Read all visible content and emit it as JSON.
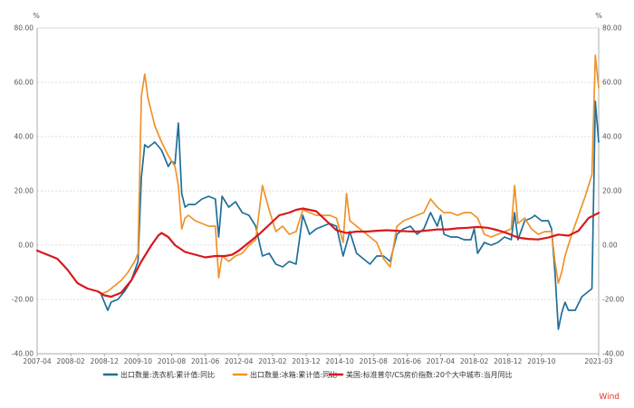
{
  "chart_data": {
    "type": "line",
    "unit_left": "%",
    "unit_right": "%",
    "ylim": [
      -40,
      80
    ],
    "y_ticks_left": [
      "80.00",
      "60.00",
      "40.00",
      "20.00",
      "0.00",
      "-20.00",
      "-40.00"
    ],
    "y_ticks_right": [
      "80.00",
      "60.00",
      "40.00",
      "20.00",
      "0.00",
      "-20.00",
      "-40.00"
    ],
    "x_ticks": [
      "2007-04",
      "2008-02",
      "2008-12",
      "2009-10",
      "2010-08",
      "2011-06",
      "2012-04",
      "2013-02",
      "2013-12",
      "2014-10",
      "2015-08",
      "2016-06",
      "2017-04",
      "2018-02",
      "2018-12",
      "2019-10",
      "2021-03"
    ],
    "xlim": [
      "2007-04",
      "2021-03"
    ],
    "grid": "horizontal-dashed",
    "legend_position": "bottom",
    "series": [
      {
        "name": "出口数量:洗衣机:累计值:同比",
        "color": "#1f6f9a",
        "points": [
          [
            "2008-11",
            -18
          ],
          [
            "2009-01",
            -24
          ],
          [
            "2009-02",
            -21
          ],
          [
            "2009-04",
            -20
          ],
          [
            "2009-06",
            -17
          ],
          [
            "2009-08",
            -13
          ],
          [
            "2009-10",
            -6
          ],
          [
            "2009-11",
            25
          ],
          [
            "2009-12",
            37
          ],
          [
            "2010-01",
            36
          ],
          [
            "2010-03",
            38
          ],
          [
            "2010-05",
            35
          ],
          [
            "2010-06",
            32
          ],
          [
            "2010-07",
            29
          ],
          [
            "2010-08",
            31
          ],
          [
            "2010-09",
            30
          ],
          [
            "2010-10",
            45
          ],
          [
            "2010-11",
            19
          ],
          [
            "2010-12",
            14
          ],
          [
            "2011-01",
            15
          ],
          [
            "2011-03",
            15
          ],
          [
            "2011-05",
            17
          ],
          [
            "2011-07",
            18
          ],
          [
            "2011-09",
            17
          ],
          [
            "2011-10",
            3
          ],
          [
            "2011-11",
            18
          ],
          [
            "2012-01",
            14
          ],
          [
            "2012-03",
            16
          ],
          [
            "2012-05",
            12
          ],
          [
            "2012-07",
            11
          ],
          [
            "2012-09",
            7
          ],
          [
            "2012-11",
            -4
          ],
          [
            "2013-01",
            -3
          ],
          [
            "2013-03",
            -7
          ],
          [
            "2013-05",
            -8
          ],
          [
            "2013-07",
            -6
          ],
          [
            "2013-09",
            -7
          ],
          [
            "2013-11",
            11
          ],
          [
            "2014-01",
            4
          ],
          [
            "2014-03",
            6
          ],
          [
            "2014-05",
            7
          ],
          [
            "2014-07",
            8
          ],
          [
            "2014-09",
            7
          ],
          [
            "2014-11",
            -4
          ],
          [
            "2015-01",
            5
          ],
          [
            "2015-03",
            -3
          ],
          [
            "2015-05",
            -5
          ],
          [
            "2015-07",
            -7
          ],
          [
            "2015-09",
            -4
          ],
          [
            "2015-11",
            -4
          ],
          [
            "2016-01",
            -6
          ],
          [
            "2016-03",
            4
          ],
          [
            "2016-05",
            6
          ],
          [
            "2016-07",
            7
          ],
          [
            "2016-09",
            4
          ],
          [
            "2016-11",
            6
          ],
          [
            "2017-01",
            12
          ],
          [
            "2017-03",
            7
          ],
          [
            "2017-04",
            11
          ],
          [
            "2017-05",
            4
          ],
          [
            "2017-07",
            3
          ],
          [
            "2017-09",
            3
          ],
          [
            "2017-11",
            2
          ],
          [
            "2018-01",
            2
          ],
          [
            "2018-02",
            6
          ],
          [
            "2018-03",
            -3
          ],
          [
            "2018-05",
            1
          ],
          [
            "2018-07",
            0
          ],
          [
            "2018-09",
            1
          ],
          [
            "2018-11",
            3
          ],
          [
            "2019-01",
            2
          ],
          [
            "2019-02",
            12
          ],
          [
            "2019-03",
            2
          ],
          [
            "2019-05",
            9
          ],
          [
            "2019-07",
            10
          ],
          [
            "2019-08",
            11
          ],
          [
            "2019-10",
            9
          ],
          [
            "2019-12",
            9
          ],
          [
            "2020-01",
            6
          ],
          [
            "2020-02",
            -10
          ],
          [
            "2020-03",
            -31
          ],
          [
            "2020-04",
            -25
          ],
          [
            "2020-05",
            -21
          ],
          [
            "2020-06",
            -24
          ],
          [
            "2020-08",
            -24
          ],
          [
            "2020-10",
            -19
          ],
          [
            "2020-12",
            -17
          ],
          [
            "2021-01",
            -16
          ],
          [
            "2021-02",
            53
          ],
          [
            "2021-03",
            38
          ]
        ]
      },
      {
        "name": "出口数量:冰箱:累计值:同比",
        "color": "#f0922b",
        "points": [
          [
            "2008-11",
            -18
          ],
          [
            "2009-01",
            -17
          ],
          [
            "2009-03",
            -15
          ],
          [
            "2009-05",
            -13
          ],
          [
            "2009-07",
            -10
          ],
          [
            "2009-09",
            -6
          ],
          [
            "2009-10",
            -3
          ],
          [
            "2009-11",
            55
          ],
          [
            "2009-12",
            63
          ],
          [
            "2010-01",
            54
          ],
          [
            "2010-03",
            44
          ],
          [
            "2010-05",
            38
          ],
          [
            "2010-07",
            33
          ],
          [
            "2010-09",
            29
          ],
          [
            "2010-10",
            22
          ],
          [
            "2010-11",
            6
          ],
          [
            "2010-12",
            10
          ],
          [
            "2011-01",
            11
          ],
          [
            "2011-03",
            9
          ],
          [
            "2011-05",
            8
          ],
          [
            "2011-07",
            7
          ],
          [
            "2011-09",
            7
          ],
          [
            "2011-10",
            -12
          ],
          [
            "2011-11",
            -4
          ],
          [
            "2012-01",
            -6
          ],
          [
            "2012-03",
            -4
          ],
          [
            "2012-05",
            -3
          ],
          [
            "2012-07",
            0
          ],
          [
            "2012-09",
            2
          ],
          [
            "2012-11",
            22
          ],
          [
            "2013-01",
            13
          ],
          [
            "2013-03",
            5
          ],
          [
            "2013-05",
            7
          ],
          [
            "2013-07",
            4
          ],
          [
            "2013-09",
            5
          ],
          [
            "2013-11",
            13
          ],
          [
            "2014-01",
            12
          ],
          [
            "2014-03",
            11
          ],
          [
            "2014-05",
            11
          ],
          [
            "2014-07",
            11
          ],
          [
            "2014-09",
            10
          ],
          [
            "2014-11",
            1
          ],
          [
            "2014-12",
            19
          ],
          [
            "2015-01",
            9
          ],
          [
            "2015-03",
            7
          ],
          [
            "2015-05",
            5
          ],
          [
            "2015-07",
            3
          ],
          [
            "2015-09",
            1
          ],
          [
            "2015-11",
            -5
          ],
          [
            "2016-01",
            -8
          ],
          [
            "2016-03",
            7
          ],
          [
            "2016-05",
            9
          ],
          [
            "2016-07",
            10
          ],
          [
            "2016-09",
            11
          ],
          [
            "2016-11",
            12
          ],
          [
            "2017-01",
            17
          ],
          [
            "2017-03",
            14
          ],
          [
            "2017-05",
            12
          ],
          [
            "2017-07",
            12
          ],
          [
            "2017-09",
            11
          ],
          [
            "2017-11",
            12
          ],
          [
            "2018-01",
            12
          ],
          [
            "2018-03",
            10
          ],
          [
            "2018-05",
            4
          ],
          [
            "2018-07",
            3
          ],
          [
            "2018-09",
            4
          ],
          [
            "2018-11",
            5
          ],
          [
            "2019-01",
            6
          ],
          [
            "2019-02",
            22
          ],
          [
            "2019-03",
            8
          ],
          [
            "2019-05",
            10
          ],
          [
            "2019-07",
            6
          ],
          [
            "2019-09",
            4
          ],
          [
            "2019-11",
            5
          ],
          [
            "2020-01",
            5
          ],
          [
            "2020-02",
            -6
          ],
          [
            "2020-03",
            -14
          ],
          [
            "2020-04",
            -10
          ],
          [
            "2020-05",
            -4
          ],
          [
            "2020-07",
            4
          ],
          [
            "2020-09",
            11
          ],
          [
            "2020-11",
            18
          ],
          [
            "2021-01",
            26
          ],
          [
            "2021-02",
            70
          ],
          [
            "2021-03",
            58
          ]
        ]
      },
      {
        "name": "美国:标准普尔/CS房价指数:20个大中城市:当月同比",
        "color": "#d7191c",
        "points": [
          [
            "2007-04",
            -2
          ],
          [
            "2007-07",
            -3.5
          ],
          [
            "2007-10",
            -5
          ],
          [
            "2008-01",
            -9
          ],
          [
            "2008-04",
            -14
          ],
          [
            "2008-07",
            -16
          ],
          [
            "2008-10",
            -17
          ],
          [
            "2008-12",
            -18.5
          ],
          [
            "2009-02",
            -19
          ],
          [
            "2009-05",
            -17.5
          ],
          [
            "2009-08",
            -13
          ],
          [
            "2009-11",
            -6
          ],
          [
            "2010-02",
            0
          ],
          [
            "2010-04",
            3.5
          ],
          [
            "2010-05",
            4.5
          ],
          [
            "2010-07",
            3
          ],
          [
            "2010-09",
            0
          ],
          [
            "2010-12",
            -2.5
          ],
          [
            "2011-03",
            -3.5
          ],
          [
            "2011-06",
            -4.5
          ],
          [
            "2011-09",
            -4
          ],
          [
            "2011-12",
            -4
          ],
          [
            "2012-02",
            -3.5
          ],
          [
            "2012-04",
            -2
          ],
          [
            "2012-07",
            1
          ],
          [
            "2012-10",
            4
          ],
          [
            "2013-01",
            7.5
          ],
          [
            "2013-04",
            11
          ],
          [
            "2013-07",
            12
          ],
          [
            "2013-09",
            13
          ],
          [
            "2013-11",
            13.5
          ],
          [
            "2014-01",
            13
          ],
          [
            "2014-03",
            12.5
          ],
          [
            "2014-06",
            9
          ],
          [
            "2014-09",
            5.5
          ],
          [
            "2014-12",
            4.5
          ],
          [
            "2015-03",
            5
          ],
          [
            "2015-06",
            5
          ],
          [
            "2015-09",
            5.3
          ],
          [
            "2015-12",
            5.5
          ],
          [
            "2016-03",
            5.3
          ],
          [
            "2016-06",
            5.1
          ],
          [
            "2016-09",
            5
          ],
          [
            "2016-12",
            5.4
          ],
          [
            "2017-03",
            5.8
          ],
          [
            "2017-06",
            5.8
          ],
          [
            "2017-09",
            6.2
          ],
          [
            "2017-12",
            6.4
          ],
          [
            "2018-03",
            6.7
          ],
          [
            "2018-06",
            6.4
          ],
          [
            "2018-09",
            5.5
          ],
          [
            "2018-12",
            4.3
          ],
          [
            "2019-03",
            2.8
          ],
          [
            "2019-06",
            2.3
          ],
          [
            "2019-09",
            2.1
          ],
          [
            "2019-12",
            2.8
          ],
          [
            "2020-03",
            3.9
          ],
          [
            "2020-06",
            3.5
          ],
          [
            "2020-09",
            5.3
          ],
          [
            "2020-12",
            10
          ],
          [
            "2021-03",
            11.9
          ]
        ]
      }
    ]
  },
  "watermark": "Wind"
}
